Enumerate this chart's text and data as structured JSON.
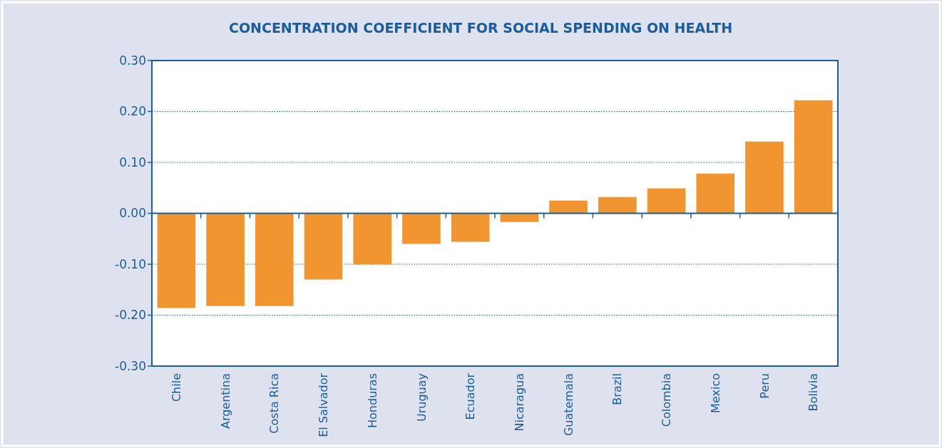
{
  "chart_data": {
    "type": "bar",
    "title": "CONCENTRATION COEFFICIENT FOR SOCIAL SPENDING ON HEALTH",
    "categories": [
      "Chile",
      "Argentina",
      "Costa Rica",
      "El Salvador",
      "Honduras",
      "Uruguay",
      "Ecuador",
      "Nicaragua",
      "Guatemala",
      "Brazil",
      "Colombia",
      "Mexico",
      "Peru",
      "Bolivia"
    ],
    "values": [
      -0.186,
      -0.182,
      -0.182,
      -0.13,
      -0.1,
      -0.06,
      -0.056,
      -0.017,
      0.025,
      0.032,
      0.049,
      0.078,
      0.141,
      0.222
    ],
    "color": "#f0952f",
    "ylim": [
      -0.3,
      0.3
    ],
    "yticks": [
      {
        "value": -0.3,
        "label": "-0.30"
      },
      {
        "value": -0.2,
        "label": "-0.20"
      },
      {
        "value": -0.1,
        "label": "-0.10"
      },
      {
        "value": 0,
        "label": "0.00"
      },
      {
        "value": 0.1,
        "label": "0.10"
      },
      {
        "value": 0.2,
        "label": "0.20"
      },
      {
        "value": 0.3,
        "label": "0.30"
      }
    ],
    "grid": "y",
    "ref_lines": [
      {
        "axis": "y",
        "value": 0,
        "color": "#1b5c9c"
      }
    ]
  }
}
